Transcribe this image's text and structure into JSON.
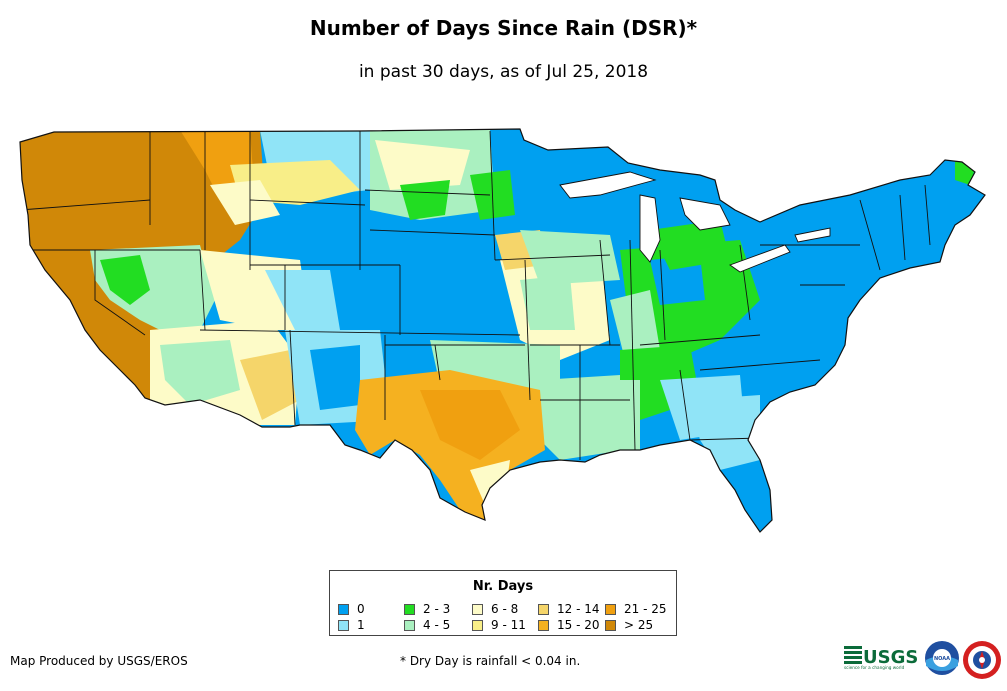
{
  "title": "Number of Days Since Rain (DSR)*",
  "subtitle": "in past 30 days, as of Jul 25, 2018",
  "legend": {
    "title": "Nr. Days",
    "items": [
      {
        "label": "0",
        "color": "#00a0f0"
      },
      {
        "label": "1",
        "color": "#90e4f7"
      },
      {
        "label": "2 - 3",
        "color": "#22dd22"
      },
      {
        "label": "4 - 5",
        "color": "#aaf0c0"
      },
      {
        "label": "6 - 8",
        "color": "#fdfbc8"
      },
      {
        "label": "9 - 11",
        "color": "#f8ee88"
      },
      {
        "label": "12 - 14",
        "color": "#f5d56a"
      },
      {
        "label": "15 - 20",
        "color": "#f5b120"
      },
      {
        "label": "21 - 25",
        "color": "#f0a010"
      },
      {
        "label": "> 25",
        "color": "#d08808"
      }
    ]
  },
  "credit": "Map Produced by USGS/EROS",
  "footnote": "* Dry Day is rainfall < 0.04 in.",
  "logos": {
    "usgs_text": "USGS",
    "usgs_tagline": "science for a changing world",
    "noaa_text": "NOAA"
  }
}
